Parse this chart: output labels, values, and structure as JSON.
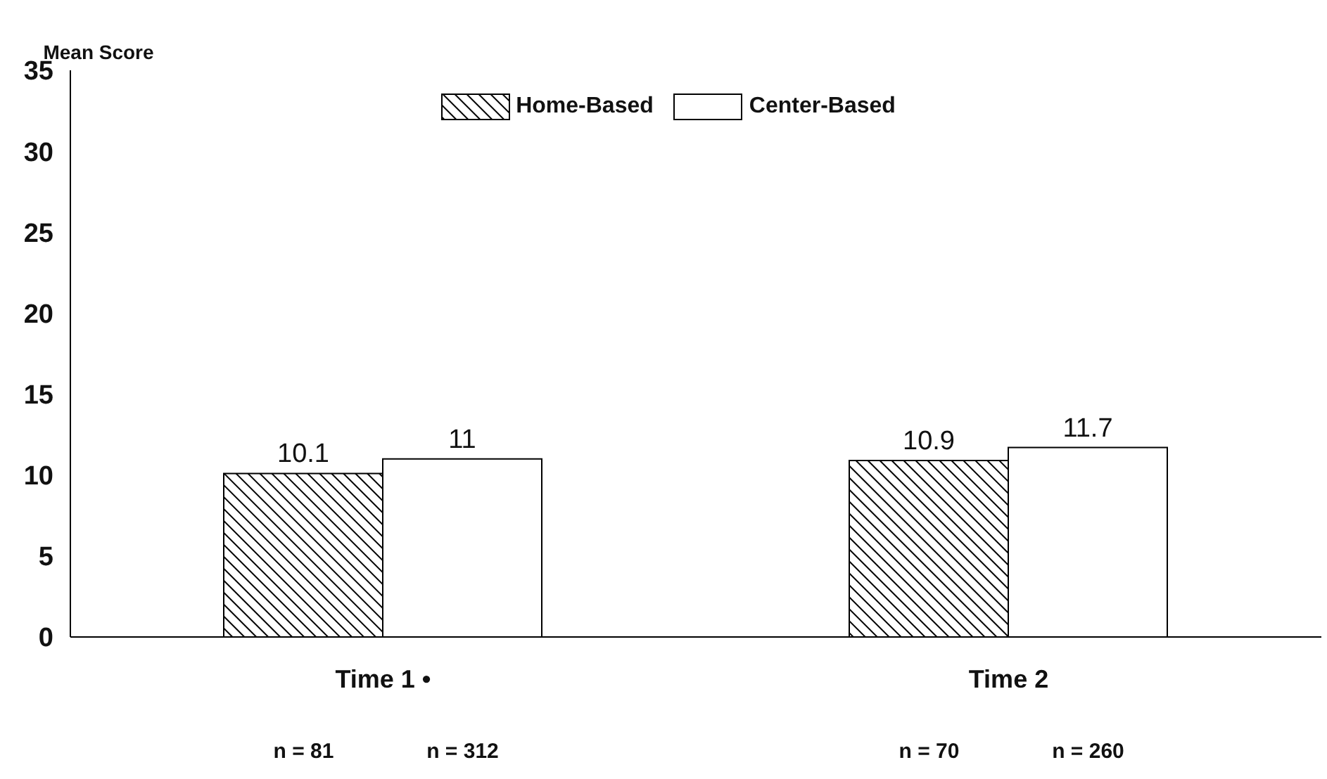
{
  "chart_data": {
    "type": "bar",
    "ylabel": "Mean Score",
    "categories": [
      "Time 1 •",
      "Time 2"
    ],
    "series": [
      {
        "name": "Home-Based",
        "color": "#000000",
        "values": [
          10.1,
          10.9
        ]
      },
      {
        "name": "Center-Based",
        "color": "#ffffff",
        "values": [
          11,
          11.7
        ]
      }
    ],
    "ylim": [
      0,
      35
    ],
    "yticks": [
      0,
      5,
      10,
      15,
      20,
      25,
      30,
      35
    ],
    "data_labels": true,
    "legend": "top",
    "grid": false,
    "annotations": [
      "n = 81",
      "n = 312",
      "n = 70",
      "n = 260"
    ]
  }
}
